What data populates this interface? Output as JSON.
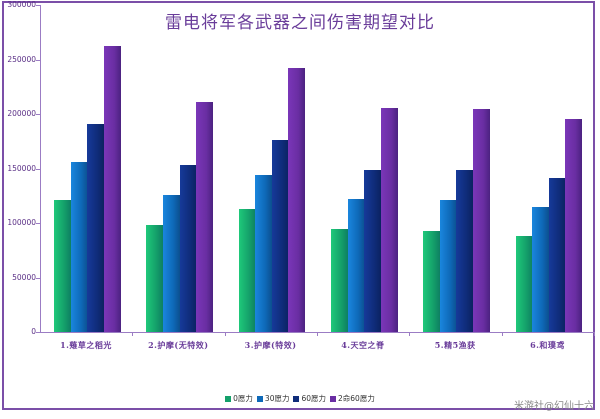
{
  "chart_data": {
    "type": "bar",
    "title": "雷电将军各武器之间伤害期望对比",
    "xlabel": "",
    "ylabel": "",
    "ylim": [
      0,
      300000
    ],
    "yticks": [
      0,
      50000,
      100000,
      150000,
      200000,
      250000,
      300000
    ],
    "grid": false,
    "legend_position": "bottom",
    "categories": [
      "1.薙草之稻光",
      "2.护摩(无特效)",
      "3.护摩(特效)",
      "4.天空之脊",
      "5.精5渔获",
      "6.和璞鸢"
    ],
    "series": [
      {
        "name": "0愿力",
        "color": "#14a06a",
        "values": [
          121200,
          98300,
          112700,
          94300,
          93000,
          88200
        ]
      },
      {
        "name": "30愿力",
        "color": "#0e69b8",
        "values": [
          156100,
          125800,
          144200,
          121900,
          121200,
          115100
        ]
      },
      {
        "name": "60愿力",
        "color": "#0f2c7a",
        "values": [
          191000,
          153400,
          176000,
          149000,
          148500,
          141700
        ]
      },
      {
        "name": "2命60愿力",
        "color": "#6a2ea3",
        "values": [
          262600,
          211500,
          242100,
          205400,
          204800,
          195600
        ]
      }
    ]
  },
  "watermark": "米游社@幻仙十六"
}
